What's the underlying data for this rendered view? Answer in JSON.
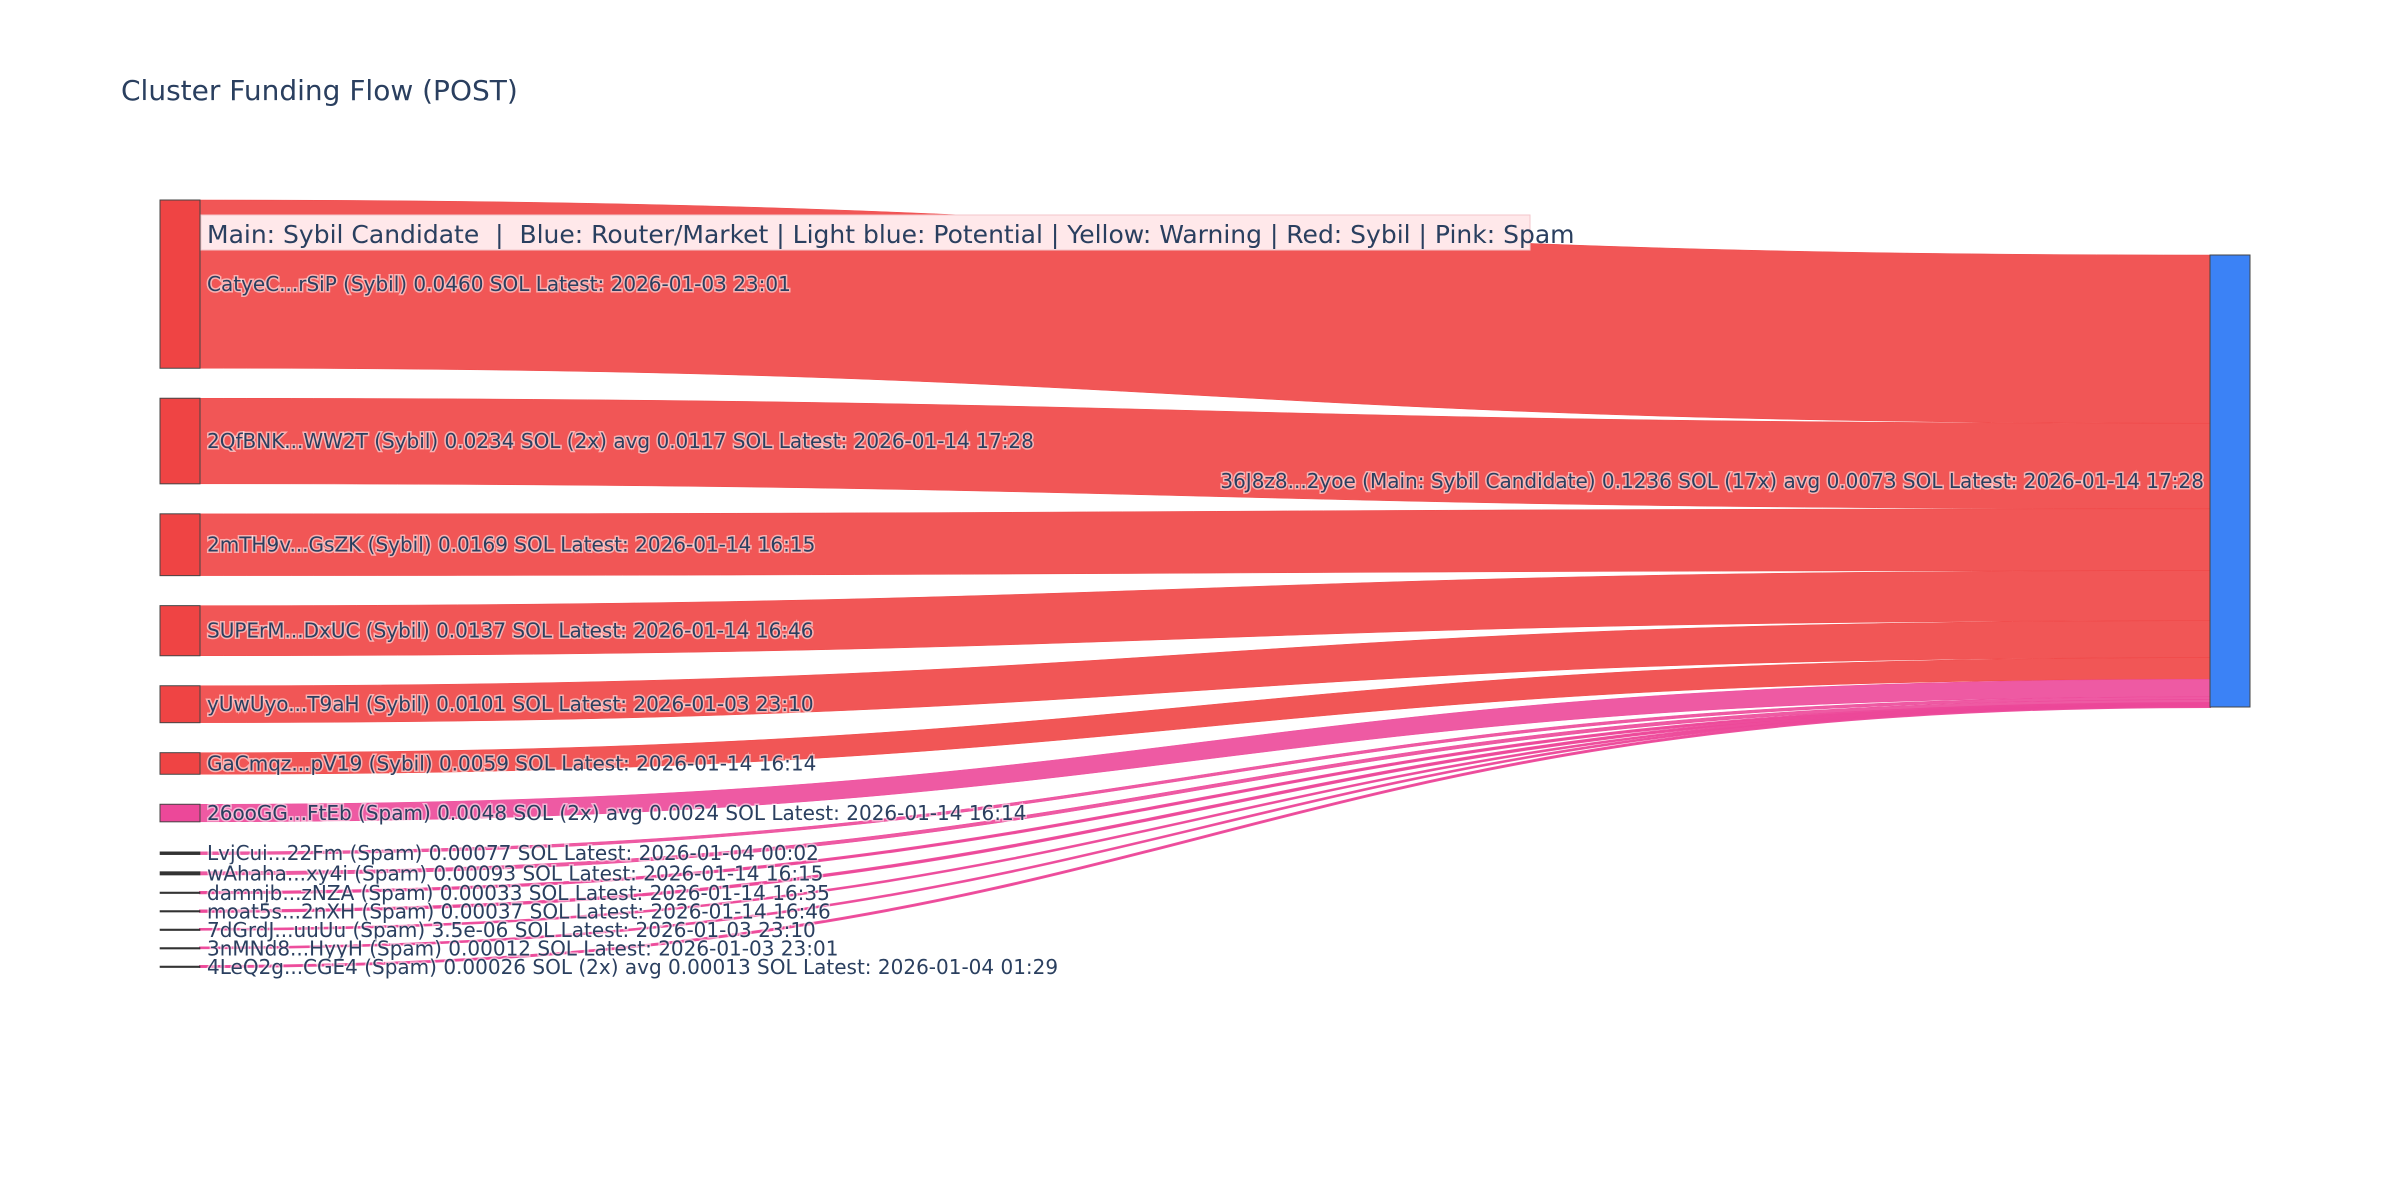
{
  "chart_data": {
    "type": "sankey",
    "title": "Cluster Funding Flow (POST)",
    "legend_note": "Main: Sybil Candidate  |  Blue: Router/Market | Light blue: Potential | Yellow: Warning | Red: Sybil | Pink: Spam",
    "colors": {
      "title": "#2a3f5f",
      "label_text": "#2a3f5f",
      "sybil": "#ef4444",
      "spam": "#ec4899",
      "main": "#3b82f6",
      "node_border": "#444444",
      "legend_bg": "#ffe8ea"
    },
    "target": {
      "id": "36J8z8...2yoe",
      "category": "Main: Sybil Candidate",
      "label": "36J8z8...2yoe (Main: Sybil Candidate) 0.1236 SOL (17x) avg 0.0073 SOL Latest: 2026-01-14 17:28",
      "total_sol": 0.1236,
      "count": 17
    },
    "sources": [
      {
        "id": "CatyeC...rSiP",
        "category": "Sybil",
        "value": 0.046,
        "tx_count": 1,
        "label": "CatyeC...rSiP (Sybil) 0.0460 SOL Latest: 2026-01-03 23:01"
      },
      {
        "id": "2QfBNK...WW2T",
        "category": "Sybil",
        "value": 0.0234,
        "tx_count": 2,
        "label": "2QfBNK...WW2T (Sybil) 0.0234 SOL (2x) avg 0.0117 SOL Latest: 2026-01-14 17:28"
      },
      {
        "id": "2mTH9v...GsZK",
        "category": "Sybil",
        "value": 0.0169,
        "tx_count": 1,
        "label": "2mTH9v...GsZK (Sybil) 0.0169 SOL Latest: 2026-01-14 16:15"
      },
      {
        "id": "SUPErM...DxUC",
        "category": "Sybil",
        "value": 0.0137,
        "tx_count": 1,
        "label": "SUPErM...DxUC (Sybil) 0.0137 SOL Latest: 2026-01-14 16:46"
      },
      {
        "id": "yUwUyo...T9aH",
        "category": "Sybil",
        "value": 0.0101,
        "tx_count": 1,
        "label": "yUwUyo...T9aH (Sybil) 0.0101 SOL Latest: 2026-01-03 23:10"
      },
      {
        "id": "GaCmqz...pV19",
        "category": "Sybil",
        "value": 0.0059,
        "tx_count": 1,
        "label": "GaCmqz...pV19 (Sybil) 0.0059 SOL Latest: 2026-01-14 16:14"
      },
      {
        "id": "26ooGG...FtEb",
        "category": "Spam",
        "value": 0.0048,
        "tx_count": 2,
        "label": "26ooGG...FtEb (Spam) 0.0048 SOL (2x) avg 0.0024 SOL Latest: 2026-01-14 16:14"
      },
      {
        "id": "LvjCui...22Fm",
        "category": "Spam",
        "value": 0.00077,
        "tx_count": 1,
        "label": "LvjCui...22Fm (Spam) 0.00077 SOL Latest: 2026-01-04 00:02"
      },
      {
        "id": "wAhaha...xy4i",
        "category": "Spam",
        "value": 0.00093,
        "tx_count": 1,
        "label": "wAhaha...xy4i (Spam) 0.00093 SOL Latest: 2026-01-14 16:15"
      },
      {
        "id": "damnjb...zNZA",
        "category": "Spam",
        "value": 0.00033,
        "tx_count": 1,
        "label": "damnjb...zNZA (Spam) 0.00033 SOL Latest: 2026-01-14 16:35"
      },
      {
        "id": "moat5s...2nXH",
        "category": "Spam",
        "value": 0.00037,
        "tx_count": 1,
        "label": "moat5s...2nXH (Spam) 0.00037 SOL Latest: 2026-01-14 16:46"
      },
      {
        "id": "7dGrdJ...uuUu",
        "category": "Spam",
        "value": 3.5e-06,
        "tx_count": 1,
        "label": "7dGrdJ...uuUu (Spam) 3.5e-06 SOL Latest: 2026-01-03 23:10"
      },
      {
        "id": "3nMNd8...HyyH",
        "category": "Spam",
        "value": 0.00012,
        "tx_count": 1,
        "label": "3nMNd8...HyyH (Spam) 0.00012 SOL Latest: 2026-01-03 23:01"
      },
      {
        "id": "4LeQ2g...CGE4",
        "category": "Spam",
        "value": 0.00026,
        "tx_count": 2,
        "label": "4LeQ2g...CGE4 (Spam) 0.00026 SOL (2x) avg 0.00013 SOL Latest: 2026-01-04 01:29"
      }
    ]
  }
}
